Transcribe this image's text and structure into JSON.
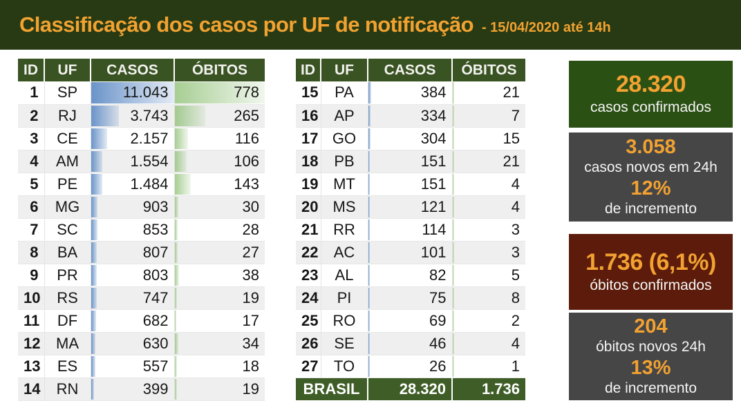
{
  "page_header": {
    "title": "Classificação dos casos por UF de notificação",
    "date_note": "- 15/04/2020 até 14h"
  },
  "columns": {
    "id": "ID",
    "uf": "UF",
    "casos": "CASOS",
    "obitos": "ÓBITOS"
  },
  "chart_data": {
    "type": "table",
    "title": "Classificação dos casos por UF de notificação - 15/04/2020 até 14h",
    "columns": [
      "ID",
      "UF",
      "CASOS",
      "ÓBITOS"
    ],
    "casos_bar_max": 11043,
    "obitos_bar_max": 778,
    "rows": [
      [
        1,
        "SP",
        11043,
        778
      ],
      [
        2,
        "RJ",
        3743,
        265
      ],
      [
        3,
        "CE",
        2157,
        116
      ],
      [
        4,
        "AM",
        1554,
        106
      ],
      [
        5,
        "PE",
        1484,
        143
      ],
      [
        6,
        "MG",
        903,
        30
      ],
      [
        7,
        "SC",
        853,
        28
      ],
      [
        8,
        "BA",
        807,
        27
      ],
      [
        9,
        "PR",
        803,
        38
      ],
      [
        10,
        "RS",
        747,
        19
      ],
      [
        11,
        "DF",
        682,
        17
      ],
      [
        12,
        "MA",
        630,
        34
      ],
      [
        13,
        "ES",
        557,
        18
      ],
      [
        14,
        "RN",
        399,
        19
      ],
      [
        15,
        "PA",
        384,
        21
      ],
      [
        16,
        "AP",
        334,
        7
      ],
      [
        17,
        "GO",
        304,
        15
      ],
      [
        18,
        "PB",
        151,
        21
      ],
      [
        19,
        "MT",
        151,
        4
      ],
      [
        20,
        "MS",
        121,
        4
      ],
      [
        21,
        "RR",
        114,
        3
      ],
      [
        22,
        "AC",
        101,
        3
      ],
      [
        23,
        "AL",
        82,
        5
      ],
      [
        24,
        "PI",
        75,
        8
      ],
      [
        25,
        "RO",
        69,
        2
      ],
      [
        26,
        "SE",
        46,
        4
      ],
      [
        27,
        "TO",
        26,
        1
      ]
    ],
    "total": {
      "label": "BRASIL",
      "casos": 28320,
      "obitos": 1736
    }
  },
  "summary_panels": [
    {
      "value": "28.320",
      "label": "casos confirmados"
    },
    {
      "value": "3.058",
      "label": "casos novos em 24h",
      "value2": "12%",
      "label2": "de incremento"
    },
    {
      "value": "1.736 (6,1%)",
      "label": "óbitos confirmados"
    },
    {
      "value": "204",
      "label": "óbitos novos 24h",
      "value2": "13%",
      "label2": "de incremento"
    }
  ],
  "colors": {
    "header_bg": "#283A13",
    "orange": "#F2A231",
    "thead_bg": "#3A5323",
    "total_bg": "#3F5E27",
    "row_alt": "#EFEFEF",
    "panel_green": "#2B5014",
    "panel_gray": "#464646",
    "panel_maroon": "#5D1C0B",
    "bar_blue": "#638EC6",
    "bar_green": "#86BB6A"
  }
}
